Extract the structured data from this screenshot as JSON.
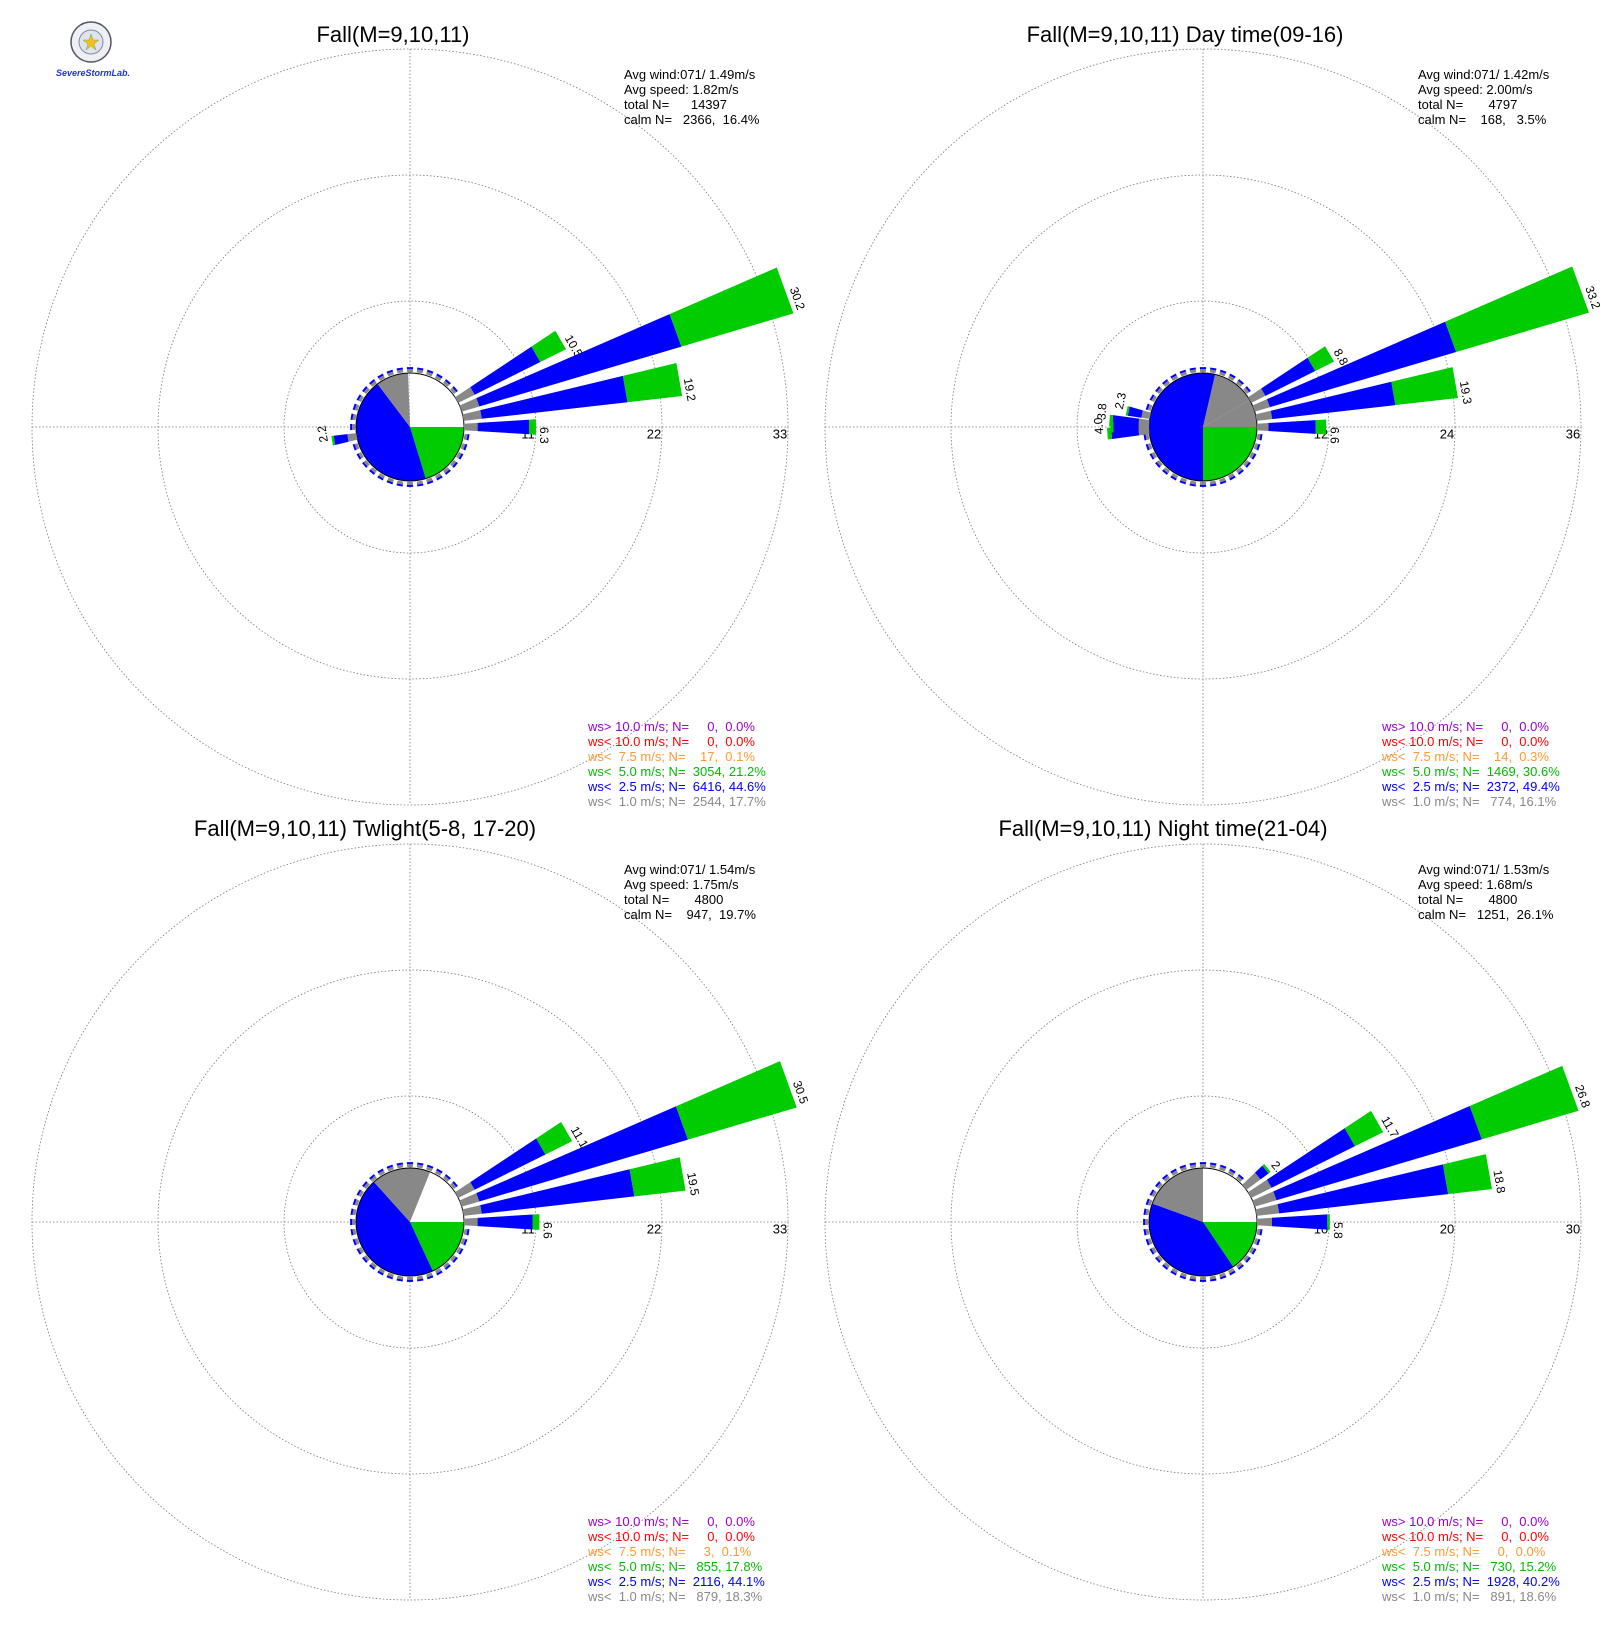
{
  "logo": {
    "text": "SevereStormLab."
  },
  "chart_data": [
    {
      "type": "wind-rose",
      "title": "Fall(M=9,10,11)",
      "stats": [
        "Avg wind:071/ 1.49m/s",
        "Avg speed: 1.82m/s",
        "total N=      14397",
        "calm N=   2366,  16.4%"
      ],
      "rmax": 33,
      "ring_ticks": [
        "11",
        "22",
        "33"
      ],
      "calm_pct": 16.4,
      "legend": [
        {
          "label": "ws> 10.0 m/s; N=     0,  0.0%",
          "color": "#9900cc"
        },
        {
          "label": "ws< 10.0 m/s; N=     0,  0.0%",
          "color": "#ff0000"
        },
        {
          "label": "ws<  7.5 m/s; N=    17,  0.1%",
          "color": "#ff9933"
        },
        {
          "label": "ws<  5.0 m/s; N=  3054, 21.2%",
          "color": "#00bb00"
        },
        {
          "label": "ws<  2.5 m/s; N=  6416, 44.6%",
          "color": "#0000ee"
        },
        {
          "label": "ws<  1.0 m/s; N=  2544, 17.7%",
          "color": "#888888"
        }
      ],
      "pie": [
        {
          "start": 0,
          "end": 37,
          "color": "#ffffff"
        },
        {
          "start": 37,
          "end": 90,
          "color": "#ffffff"
        },
        {
          "start": 90,
          "end": 163,
          "color": "#00cc00"
        },
        {
          "start": 163,
          "end": 323,
          "color": "#0000ff"
        },
        {
          "start": 323,
          "end": 358,
          "color": "#888888"
        }
      ],
      "petals": [
        {
          "dir": 60,
          "total": 10.5,
          "label": "10.5",
          "segs": [
            1.6,
            6.4,
            2.5
          ]
        },
        {
          "dir": 70,
          "total": 30.2,
          "label": "30.2",
          "segs": [
            1.6,
            18.4,
            10.2
          ]
        },
        {
          "dir": 80,
          "total": 19.2,
          "label": "19.2",
          "segs": [
            1.6,
            12.8,
            4.8
          ]
        },
        {
          "dir": 90,
          "total": 6.3,
          "label": "6.3",
          "segs": [
            1.2,
            4.5,
            0.6
          ]
        },
        {
          "dir": 260,
          "total": 2.2,
          "label": "2.2",
          "segs": [
            0.8,
            1.2,
            0.2
          ]
        }
      ]
    },
    {
      "type": "wind-rose",
      "title": "Fall(M=9,10,11) Day time(09-16)",
      "stats": [
        "Avg wind:071/ 1.42m/s",
        "Avg speed: 2.00m/s",
        "total N=       4797",
        "calm N=    168,   3.5%"
      ],
      "rmax": 36,
      "ring_ticks": [
        "12",
        "24",
        "36"
      ],
      "calm_pct": 3.5,
      "legend": [
        {
          "label": "ws> 10.0 m/s; N=     0,  0.0%",
          "color": "#9900cc"
        },
        {
          "label": "ws< 10.0 m/s; N=     0,  0.0%",
          "color": "#ff0000"
        },
        {
          "label": "ws<  7.5 m/s; N=    14,  0.3%",
          "color": "#ff9933"
        },
        {
          "label": "ws<  5.0 m/s; N=  1469, 30.6%",
          "color": "#00bb00"
        },
        {
          "label": "ws<  2.5 m/s; N=  2372, 49.4%",
          "color": "#0000ee"
        },
        {
          "label": "ws<  1.0 m/s; N=   774, 16.1%",
          "color": "#888888"
        }
      ],
      "pie": [
        {
          "start": 0,
          "end": 13,
          "color": "#0000ff"
        },
        {
          "start": 13,
          "end": 60,
          "color": "#888888"
        },
        {
          "start": 60,
          "end": 90,
          "color": "#888888"
        },
        {
          "start": 90,
          "end": 180,
          "color": "#00cc00"
        },
        {
          "start": 180,
          "end": 360,
          "color": "#0000ff"
        }
      ],
      "petals": [
        {
          "dir": 60,
          "total": 8.8,
          "label": "8.8",
          "segs": [
            1.5,
            5.3,
            2.0
          ]
        },
        {
          "dir": 70,
          "total": 33.2,
          "label": "33.2",
          "segs": [
            1.5,
            18.5,
            13.2
          ]
        },
        {
          "dir": 80,
          "total": 19.3,
          "label": "19.3",
          "segs": [
            1.5,
            11.8,
            6.0
          ]
        },
        {
          "dir": 90,
          "total": 6.6,
          "label": "6.6",
          "segs": [
            1.1,
            4.5,
            1.0
          ]
        },
        {
          "dir": 266,
          "total": 4.0,
          "label": "4.0",
          "segs": [
            1.0,
            2.6,
            0.4
          ]
        },
        {
          "dir": 274,
          "total": 3.8,
          "label": "3.8",
          "segs": [
            1.0,
            2.5,
            0.3
          ]
        },
        {
          "dir": 282,
          "total": 2.3,
          "label": "2.3",
          "segs": [
            0.8,
            1.3,
            0.2
          ]
        },
        {
          "dir": 270,
          "total": 3.7,
          "label": "",
          "segs": [
            1.0,
            2.4,
            0.3
          ]
        }
      ]
    },
    {
      "type": "wind-rose",
      "title": "Fall(M=9,10,11) Twlight(5-8, 17-20)",
      "stats": [
        "Avg wind:071/ 1.54m/s",
        "Avg speed: 1.75m/s",
        "total N=       4800",
        "calm N=    947,  19.7%"
      ],
      "rmax": 33,
      "ring_ticks": [
        "11",
        "22",
        "33"
      ],
      "calm_pct": 19.7,
      "legend": [
        {
          "label": "ws> 10.0 m/s; N=     0,  0.0%",
          "color": "#9900cc"
        },
        {
          "label": "ws< 10.0 m/s; N=     0,  0.0%",
          "color": "#ff0000"
        },
        {
          "label": "ws<  7.5 m/s; N=     3,  0.1%",
          "color": "#ff9933"
        },
        {
          "label": "ws<  5.0 m/s; N=   855, 17.8%",
          "color": "#00bb00"
        },
        {
          "label": "ws<  2.5 m/s; N=  2116, 44.1%",
          "color": "#0000ee"
        },
        {
          "label": "ws<  1.0 m/s; N=   879, 18.3%",
          "color": "#888888"
        }
      ],
      "pie": [
        {
          "start": 0,
          "end": 22,
          "color": "#888888"
        },
        {
          "start": 22,
          "end": 90,
          "color": "#ffffff"
        },
        {
          "start": 90,
          "end": 155,
          "color": "#00cc00"
        },
        {
          "start": 155,
          "end": 318,
          "color": "#0000ff"
        },
        {
          "start": 318,
          "end": 360,
          "color": "#888888"
        }
      ],
      "petals": [
        {
          "dir": 60,
          "total": 11.1,
          "label": "11.1",
          "segs": [
            1.6,
            6.9,
            2.6
          ]
        },
        {
          "dir": 70,
          "total": 30.5,
          "label": "30.5",
          "segs": [
            1.6,
            19.0,
            9.9
          ]
        },
        {
          "dir": 80,
          "total": 19.5,
          "label": "19.5",
          "segs": [
            1.6,
            13.4,
            4.5
          ]
        },
        {
          "dir": 90,
          "total": 6.6,
          "label": "6.6",
          "segs": [
            1.2,
            4.8,
            0.6
          ]
        }
      ]
    },
    {
      "type": "wind-rose",
      "title": "Fall(M=9,10,11) Night time(21-04)",
      "stats": [
        "Avg wind:071/ 1.53m/s",
        "Avg speed: 1.68m/s",
        "total N=       4800",
        "calm N=   1251,  26.1%"
      ],
      "rmax": 30,
      "ring_ticks": [
        "10",
        "20",
        "30"
      ],
      "calm_pct": 26.1,
      "legend": [
        {
          "label": "ws> 10.0 m/s; N=     0,  0.0%",
          "color": "#9900cc"
        },
        {
          "label": "ws< 10.0 m/s; N=     0,  0.0%",
          "color": "#ff0000"
        },
        {
          "label": "ws<  7.5 m/s; N=     0,  0.0%",
          "color": "#ff9933"
        },
        {
          "label": "ws<  5.0 m/s; N=   730, 15.2%",
          "color": "#00bb00"
        },
        {
          "label": "ws<  2.5 m/s; N=  1928, 40.2%",
          "color": "#0000ee"
        },
        {
          "label": "ws<  1.0 m/s; N=   891, 18.6%",
          "color": "#888888"
        }
      ],
      "pie": [
        {
          "start": 0,
          "end": 90,
          "color": "#ffffff"
        },
        {
          "start": 90,
          "end": 146,
          "color": "#00cc00"
        },
        {
          "start": 146,
          "end": 290,
          "color": "#0000ff"
        },
        {
          "start": 290,
          "end": 360,
          "color": "#888888"
        }
      ],
      "petals": [
        {
          "dir": 50,
          "total": 2.4,
          "label": "2.4",
          "segs": [
            1.4,
            0.8,
            0.2
          ]
        },
        {
          "dir": 60,
          "total": 11.7,
          "label": "11.7",
          "segs": [
            1.8,
            7.4,
            2.5
          ]
        },
        {
          "dir": 70,
          "total": 26.8,
          "label": "26.8",
          "segs": [
            1.8,
            17.0,
            8.0
          ]
        },
        {
          "dir": 80,
          "total": 18.8,
          "label": "18.8",
          "segs": [
            1.8,
            13.5,
            3.5
          ]
        },
        {
          "dir": 90,
          "total": 5.8,
          "label": "5.8",
          "segs": [
            1.2,
            4.4,
            0.2
          ]
        }
      ]
    }
  ]
}
